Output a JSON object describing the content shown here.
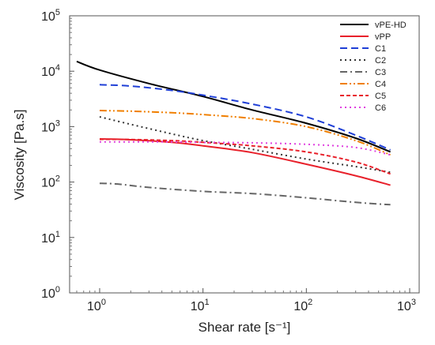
{
  "chart_data": {
    "type": "line",
    "title": "",
    "xlabel": "Shear rate [s⁻¹]",
    "ylabel": "Viscosity [Pa.s]",
    "xscale": "log",
    "yscale": "log",
    "xlim": [
      0.5,
      1000
    ],
    "ylim": [
      1,
      100000
    ],
    "grid": false,
    "legend_position": "top-right",
    "xticks": [
      {
        "value": 1,
        "base": "10",
        "exp": "0"
      },
      {
        "value": 10,
        "base": "10",
        "exp": "1"
      },
      {
        "value": 100,
        "base": "10",
        "exp": "2"
      },
      {
        "value": 1000,
        "base": "10",
        "exp": "3"
      }
    ],
    "yticks": [
      {
        "value": 1,
        "base": "10",
        "exp": "0"
      },
      {
        "value": 10,
        "base": "10",
        "exp": "1"
      },
      {
        "value": 100,
        "base": "10",
        "exp": "2"
      },
      {
        "value": 1000,
        "base": "10",
        "exp": "3"
      },
      {
        "value": 10000,
        "base": "10",
        "exp": "4"
      },
      {
        "value": 100000,
        "base": "10",
        "exp": "5"
      }
    ],
    "series": [
      {
        "name": "vPE-HD",
        "color": "#000000",
        "dash": "solid",
        "x": [
          0.6,
          1,
          3,
          10,
          30,
          100,
          300,
          650
        ],
        "y": [
          15000,
          10500,
          6000,
          3500,
          2000,
          1150,
          620,
          350
        ]
      },
      {
        "name": "vPP",
        "color": "#e8212b",
        "dash": "solid",
        "x": [
          1,
          2,
          5,
          10,
          30,
          100,
          300,
          650
        ],
        "y": [
          600,
          580,
          520,
          450,
          340,
          210,
          130,
          88
        ]
      },
      {
        "name": "C1",
        "color": "#1f3fd6",
        "dash": "dashed",
        "x": [
          1,
          2,
          5,
          10,
          30,
          100,
          300,
          650
        ],
        "y": [
          5700,
          5400,
          4500,
          3700,
          2550,
          1500,
          700,
          380
        ]
      },
      {
        "name": "C2",
        "color": "#333333",
        "dash": "dotted",
        "x": [
          1,
          2,
          5,
          10,
          30,
          100,
          300,
          650
        ],
        "y": [
          1500,
          1100,
          740,
          560,
          390,
          260,
          190,
          150
        ]
      },
      {
        "name": "C3",
        "color": "#666666",
        "dash": "dashdot",
        "x": [
          1,
          1.5,
          3,
          10,
          30,
          100,
          300,
          650
        ],
        "y": [
          95,
          92,
          80,
          68,
          62,
          52,
          43,
          39
        ]
      },
      {
        "name": "C4",
        "color": "#f07f00",
        "dash": "dashdotdot",
        "x": [
          1,
          2,
          5,
          10,
          30,
          100,
          300,
          650
        ],
        "y": [
          1950,
          1900,
          1780,
          1650,
          1400,
          1000,
          560,
          310
        ]
      },
      {
        "name": "C5",
        "color": "#e8212b",
        "dash": "shortdash",
        "x": [
          1,
          2,
          5,
          10,
          30,
          100,
          300,
          650
        ],
        "y": [
          590,
          585,
          560,
          520,
          450,
          350,
          230,
          140
        ]
      },
      {
        "name": "C6",
        "color": "#e040e0",
        "dash": "dotted",
        "x": [
          1,
          2,
          5,
          10,
          30,
          100,
          300,
          650
        ],
        "y": [
          530,
          530,
          530,
          520,
          510,
          480,
          420,
          310
        ]
      }
    ]
  }
}
